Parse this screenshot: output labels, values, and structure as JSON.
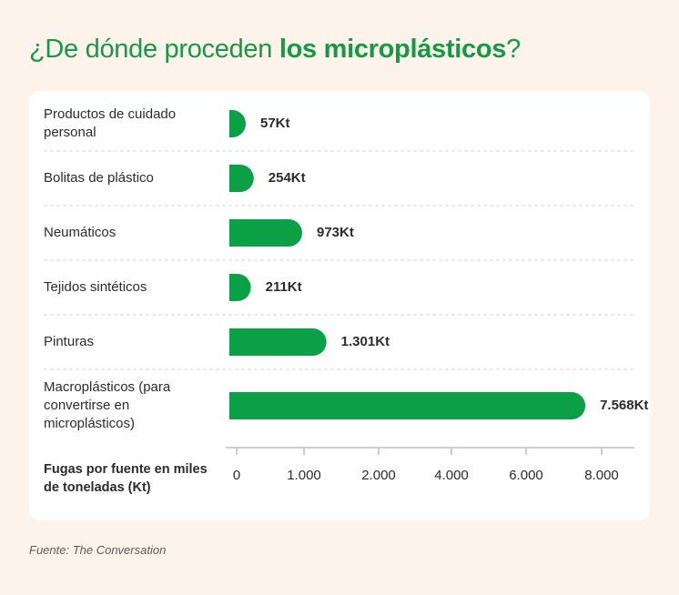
{
  "title": {
    "plain": "¿De dónde proceden ",
    "bold": "los microplásticos",
    "end": "?"
  },
  "source": "Fuente: The Conversation",
  "colors": {
    "bar": "#0aa045",
    "title": "#149a45",
    "background": "#fdf3ea"
  },
  "chart_data": {
    "type": "bar",
    "orientation": "horizontal",
    "categories": [
      "Productos de cuidado personal",
      "Bolitas de plástico",
      "Neumáticos",
      "Tejidos sintéticos",
      "Pinturas",
      "Macroplásticos (para convertirse en microplásticos)"
    ],
    "category_lines": [
      [
        "Productos de cuidado",
        "personal"
      ],
      [
        "Bolitas de plástico"
      ],
      [
        "Neumáticos"
      ],
      [
        "Tejidos sintéticos"
      ],
      [
        "Pinturas"
      ],
      [
        "Macroplásticos (para",
        "convertirse en",
        "microplásticos)"
      ]
    ],
    "values": [
      57,
      254,
      973,
      211,
      1301,
      7568
    ],
    "value_labels": [
      "57Kt",
      "254Kt",
      "973Kt",
      "211Kt",
      "1.301Kt",
      "7.568Kt"
    ],
    "x_ticks": [
      0,
      1000,
      2000,
      4000,
      6000,
      8000
    ],
    "x_tick_labels": [
      "0",
      "1.000",
      "2.000",
      "4.000",
      "6.000",
      "8.000"
    ],
    "xlabel_lines": [
      "Fugas por fuente en miles",
      "de toneladas (Kt)"
    ],
    "grid": false
  }
}
